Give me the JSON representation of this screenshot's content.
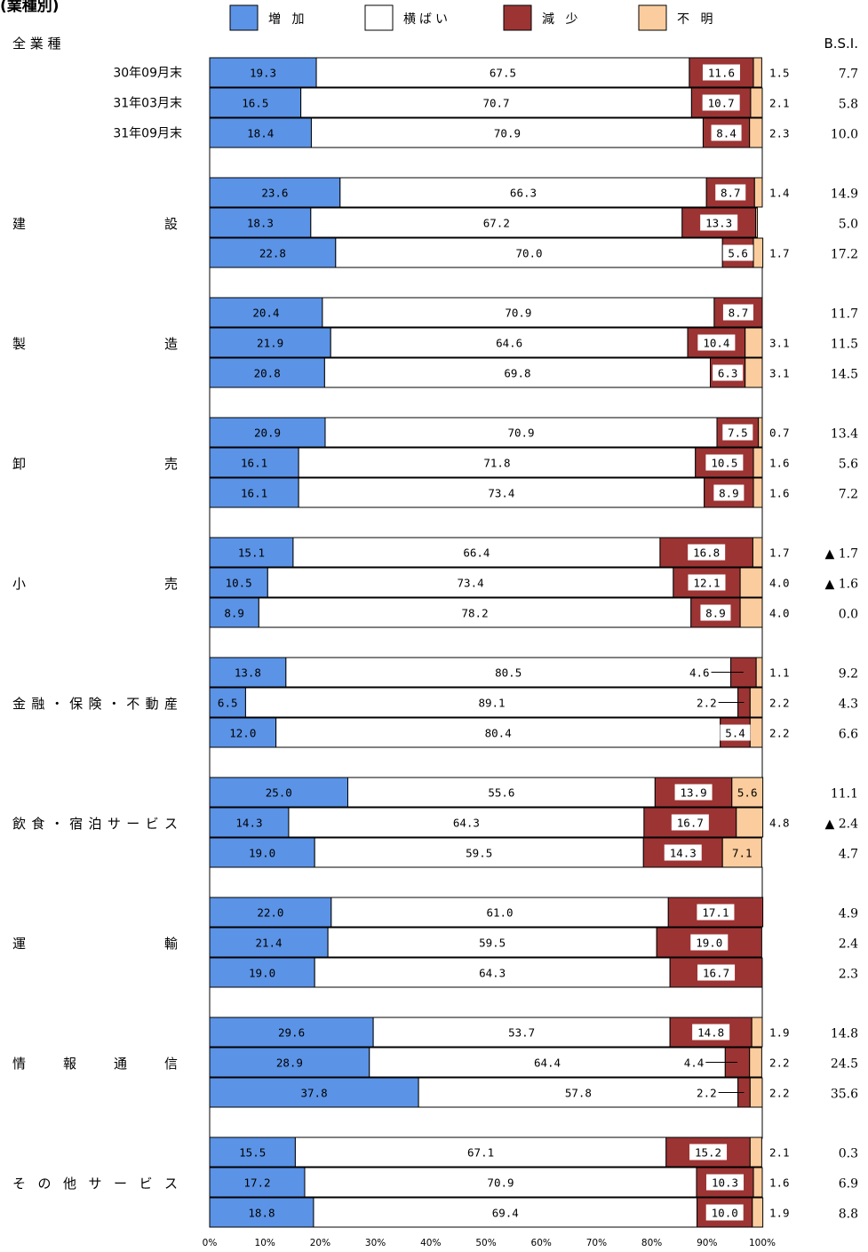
{
  "chart_data": {
    "type": "bar",
    "orientation": "horizontal",
    "stacked": true,
    "title": "(業種別)",
    "legend": [
      {
        "key": "inc",
        "label": "増 加",
        "color": "#5b93e6"
      },
      {
        "key": "flat",
        "label": "横ばい",
        "color": "#ffffff"
      },
      {
        "key": "dec",
        "label": "減 少",
        "color": "#9c3434"
      },
      {
        "key": "unk",
        "label": "不 明",
        "color": "#fbcc9d"
      }
    ],
    "header_left": "全 業 種",
    "header_right": "B.S.I.",
    "xlim": [
      0,
      100
    ],
    "xticks": [
      "0%",
      "10%",
      "20%",
      "30%",
      "40%",
      "50%",
      "60%",
      "70%",
      "80%",
      "90%",
      "100%"
    ],
    "groups": [
      {
        "name": "",
        "rows": [
          {
            "period": "30年09月末",
            "inc": 19.3,
            "flat": 67.5,
            "dec": 11.6,
            "unk": 1.5,
            "side_label": "1.5",
            "dec_label": "11.6",
            "bsi": "7.7"
          },
          {
            "period": "31年03月末",
            "inc": 16.5,
            "flat": 70.7,
            "dec": 10.7,
            "unk": 2.1,
            "side_label": "2.1",
            "dec_label": "10.7",
            "bsi": "5.8"
          },
          {
            "period": "31年09月末",
            "inc": 18.4,
            "flat": 70.9,
            "dec": 8.4,
            "unk": 2.3,
            "side_label": "2.3",
            "dec_label": "8.4",
            "bsi": "10.0"
          }
        ]
      },
      {
        "name": "建 設",
        "rows": [
          {
            "inc": 23.6,
            "flat": 66.3,
            "dec": 8.7,
            "unk": 1.4,
            "side_label": "1.4",
            "dec_label": "8.7",
            "bsi": "14.9"
          },
          {
            "inc": 18.3,
            "flat": 67.2,
            "dec": 13.3,
            "unk": 0.3,
            "dec_label": "13.3",
            "bsi": "5.0"
          },
          {
            "inc": 22.8,
            "flat": 70.0,
            "dec": 5.6,
            "unk": 1.7,
            "side_label": "1.7",
            "dec_label": "5.6",
            "bsi": "17.2"
          }
        ]
      },
      {
        "name": "製 造",
        "rows": [
          {
            "inc": 20.4,
            "flat": 70.9,
            "dec": 8.7,
            "unk": 0,
            "dec_label": "8.7",
            "bsi": "11.7"
          },
          {
            "inc": 21.9,
            "flat": 64.6,
            "dec": 10.4,
            "unk": 3.1,
            "side_label": "3.1",
            "dec_label": "10.4",
            "bsi": "11.5"
          },
          {
            "inc": 20.8,
            "flat": 69.8,
            "dec": 6.3,
            "unk": 3.1,
            "side_label": "3.1",
            "dec_label": "6.3",
            "bsi": "14.5"
          }
        ]
      },
      {
        "name": "卸 売",
        "rows": [
          {
            "inc": 20.9,
            "flat": 70.9,
            "dec": 7.5,
            "unk": 0.7,
            "side_label": "0.7",
            "dec_label": "7.5",
            "bsi": "13.4"
          },
          {
            "inc": 16.1,
            "flat": 71.8,
            "dec": 10.5,
            "unk": 1.6,
            "side_label": "1.6",
            "dec_label": "10.5",
            "bsi": "5.6"
          },
          {
            "inc": 16.1,
            "flat": 73.4,
            "dec": 8.9,
            "unk": 1.6,
            "side_label": "1.6",
            "dec_label": "8.9",
            "bsi": "7.2"
          }
        ]
      },
      {
        "name": "小 売",
        "rows": [
          {
            "inc": 15.1,
            "flat": 66.4,
            "dec": 16.8,
            "unk": 1.7,
            "side_label": "1.7",
            "dec_label": "16.8",
            "bsi": "▲ 1.7"
          },
          {
            "inc": 10.5,
            "flat": 73.4,
            "dec": 12.1,
            "unk": 4.0,
            "side_label": "4.0",
            "dec_label": "12.1",
            "bsi": "▲ 1.6"
          },
          {
            "inc": 8.9,
            "flat": 78.2,
            "dec": 8.9,
            "unk": 4.0,
            "side_label": "4.0",
            "dec_label": "8.9",
            "bsi": "0.0"
          }
        ]
      },
      {
        "name": "金融・保険・不動産",
        "rows": [
          {
            "inc": 13.8,
            "flat": 80.5,
            "dec": 4.6,
            "unk": 1.1,
            "side_label": "1.1",
            "dec_label": "4.6",
            "dec_leader": true,
            "bsi": "9.2"
          },
          {
            "inc": 6.5,
            "flat": 89.1,
            "dec": 2.2,
            "unk": 2.2,
            "side_label": "2.2",
            "dec_label": "2.2",
            "dec_leader": true,
            "bsi": "4.3"
          },
          {
            "inc": 12.0,
            "flat": 80.4,
            "dec": 5.4,
            "unk": 2.2,
            "side_label": "2.2",
            "dec_label": "5.4",
            "bsi": "6.6"
          }
        ]
      },
      {
        "name": "飲食・宿泊サービス",
        "rows": [
          {
            "inc": 25.0,
            "flat": 55.6,
            "dec": 13.9,
            "unk": 5.6,
            "unk_label": "5.6",
            "dec_label": "13.9",
            "bsi": "11.1"
          },
          {
            "inc": 14.3,
            "flat": 64.3,
            "dec": 16.7,
            "unk": 4.8,
            "side_label": "4.8",
            "dec_label": "16.7",
            "bsi": "▲ 2.4"
          },
          {
            "inc": 19.0,
            "flat": 59.5,
            "dec": 14.3,
            "unk": 7.1,
            "unk_label": "7.1",
            "dec_label": "14.3",
            "bsi": "4.7"
          }
        ]
      },
      {
        "name": "運 輸",
        "rows": [
          {
            "inc": 22.0,
            "flat": 61.0,
            "dec": 17.1,
            "unk": 0,
            "dec_label": "17.1",
            "bsi": "4.9"
          },
          {
            "inc": 21.4,
            "flat": 59.5,
            "dec": 19.0,
            "unk": 0,
            "dec_label": "19.0",
            "bsi": "2.4"
          },
          {
            "inc": 19.0,
            "flat": 64.3,
            "dec": 16.7,
            "unk": 0,
            "dec_label": "16.7",
            "bsi": "2.3"
          }
        ]
      },
      {
        "name": "情 報 通 信",
        "rows": [
          {
            "inc": 29.6,
            "flat": 53.7,
            "dec": 14.8,
            "unk": 1.9,
            "side_label": "1.9",
            "dec_label": "14.8",
            "bsi": "14.8"
          },
          {
            "inc": 28.9,
            "flat": 64.4,
            "dec": 4.4,
            "unk": 2.2,
            "side_label": "2.2",
            "dec_label": "4.4",
            "dec_leader": true,
            "bsi": "24.5"
          },
          {
            "inc": 37.8,
            "flat": 57.8,
            "dec": 2.2,
            "unk": 2.2,
            "side_label": "2.2",
            "dec_label": "2.2",
            "dec_leader": true,
            "bsi": "35.6"
          }
        ]
      },
      {
        "name": "その他サービス",
        "rows": [
          {
            "inc": 15.5,
            "flat": 67.1,
            "dec": 15.2,
            "unk": 2.1,
            "side_label": "2.1",
            "dec_label": "15.2",
            "bsi": "0.3"
          },
          {
            "inc": 17.2,
            "flat": 70.9,
            "dec": 10.3,
            "unk": 1.6,
            "side_label": "1.6",
            "dec_label": "10.3",
            "bsi": "6.9"
          },
          {
            "inc": 18.8,
            "flat": 69.4,
            "dec": 10.0,
            "unk": 1.9,
            "side_label": "1.9",
            "dec_label": "10.0",
            "bsi": "8.8"
          }
        ]
      }
    ]
  }
}
